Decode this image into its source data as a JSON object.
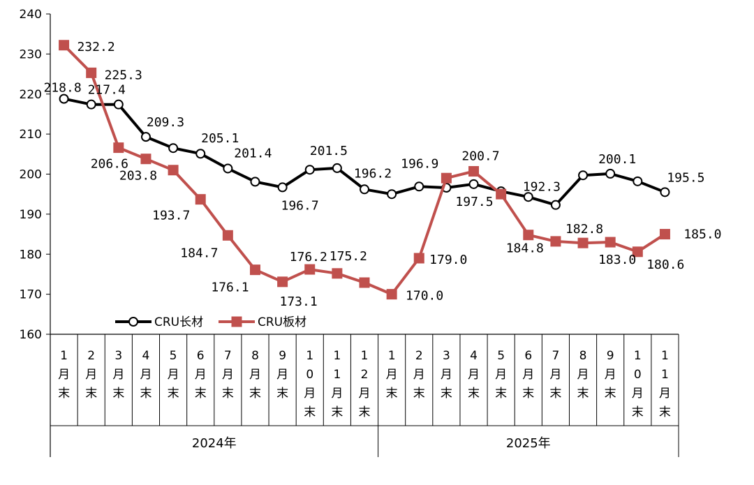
{
  "chart_data": {
    "type": "line",
    "title": "",
    "xlabel": "",
    "ylabel": "",
    "ylim": [
      160,
      240
    ],
    "yticks": [
      "160",
      "170",
      "180",
      "190",
      "200",
      "210",
      "220",
      "230",
      "240"
    ],
    "categories": [
      "1月末",
      "2月末",
      "3月末",
      "4月末",
      "5月末",
      "6月末",
      "7月末",
      "8月末",
      "9月末",
      "10月末",
      "11月末",
      "12月末",
      "1月末",
      "2月末",
      "3月末",
      "4月末",
      "5月末",
      "6月末",
      "7月末",
      "8月末",
      "9月末",
      "10月末",
      "11月末"
    ],
    "category_lines": [
      [
        "1",
        "月",
        "末"
      ],
      [
        "2",
        "月",
        "末"
      ],
      [
        "3",
        "月",
        "末"
      ],
      [
        "4",
        "月",
        "末"
      ],
      [
        "5",
        "月",
        "末"
      ],
      [
        "6",
        "月",
        "末"
      ],
      [
        "7",
        "月",
        "末"
      ],
      [
        "8",
        "月",
        "末"
      ],
      [
        "9",
        "月",
        "末"
      ],
      [
        "1",
        "0",
        "月",
        "末"
      ],
      [
        "1",
        "1",
        "月",
        "末"
      ],
      [
        "1",
        "2",
        "月",
        "末"
      ],
      [
        "1",
        "月",
        "末"
      ],
      [
        "2",
        "月",
        "末"
      ],
      [
        "3",
        "月",
        "末"
      ],
      [
        "4",
        "月",
        "末"
      ],
      [
        "5",
        "月",
        "末"
      ],
      [
        "6",
        "月",
        "末"
      ],
      [
        "7",
        "月",
        "末"
      ],
      [
        "8",
        "月",
        "末"
      ],
      [
        "9",
        "月",
        "末"
      ],
      [
        "1",
        "0",
        "月",
        "末"
      ],
      [
        "1",
        "1",
        "月",
        "末"
      ]
    ],
    "groups": [
      {
        "label": "2024年",
        "count": 12
      },
      {
        "label": "2025年",
        "count": 11
      }
    ],
    "legend_position": "bottom-left",
    "series": [
      {
        "name": "CRU长材",
        "color": "#000000",
        "marker": "circle",
        "values": [
          218.8,
          217.4,
          217.4,
          209.3,
          206.5,
          205.1,
          201.4,
          198.1,
          196.7,
          201.1,
          201.5,
          196.2,
          195.0,
          196.9,
          196.6,
          197.5,
          195.7,
          194.3,
          192.3,
          199.7,
          200.1,
          198.2,
          195.5
        ],
        "labels": [
          "218.8",
          "217.4",
          "",
          "209.3",
          "",
          "205.1",
          "201.4",
          "",
          "196.7",
          "",
          "201.5",
          "196.2",
          "",
          "196.9",
          "",
          "197.5",
          "",
          "",
          "192.3",
          "",
          "200.1",
          "",
          "195.5"
        ]
      },
      {
        "name": "CRU板材",
        "color": "#c0504d",
        "marker": "square",
        "values": [
          232.2,
          225.3,
          206.6,
          203.8,
          201.0,
          193.7,
          184.7,
          176.1,
          173.1,
          176.2,
          175.2,
          172.9,
          170.0,
          179.0,
          199.0,
          200.7,
          195.0,
          184.8,
          183.2,
          182.8,
          183.0,
          180.6,
          185.0
        ],
        "labels": [
          "232.2",
          "225.3",
          "206.6",
          "203.8",
          "",
          "193.7",
          "184.7",
          "176.1",
          "173.1",
          "176.2",
          "175.2",
          "",
          "170.0",
          "179.0",
          "",
          "200.7",
          "",
          "184.8",
          "",
          "182.8",
          "183.0",
          "180.6",
          "185.0"
        ]
      }
    ]
  }
}
